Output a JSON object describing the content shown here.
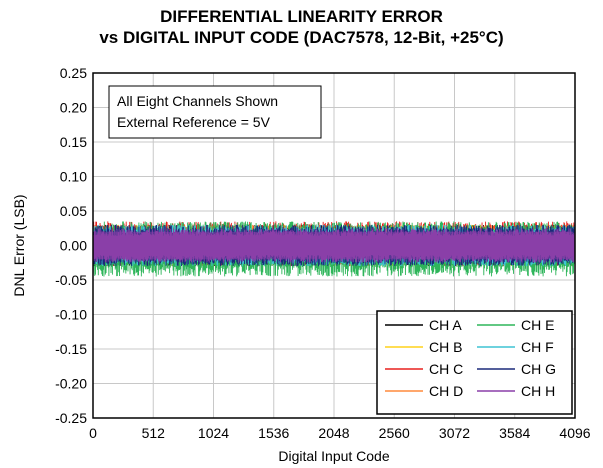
{
  "chart_data": {
    "type": "line",
    "title": "DIFFERENTIAL LINEARITY ERROR",
    "subtitle": "vs DIGITAL INPUT CODE (DAC7578, 12-Bit, +25°C)",
    "xlabel": "Digital Input Code",
    "ylabel": "DNL Error (LSB)",
    "xlim": [
      0,
      4096
    ],
    "ylim": [
      -0.25,
      0.25
    ],
    "x_ticks": [
      "0",
      "512",
      "1024",
      "1536",
      "2048",
      "2560",
      "3072",
      "3584",
      "4096"
    ],
    "y_ticks": [
      "0.25",
      "0.20",
      "0.15",
      "0.10",
      "0.05",
      "0.00",
      "-0.05",
      "-0.10",
      "-0.15",
      "-0.20",
      "-0.25"
    ],
    "grid": true,
    "legend_position": "bottom-right",
    "annotations": [
      "All Eight Channels Shown",
      "External Reference = 5V"
    ],
    "series": [
      {
        "name": "CH A",
        "color": "#000000",
        "range": [
          -0.03,
          0.03
        ]
      },
      {
        "name": "CH B",
        "color": "#ffd21a",
        "range": [
          -0.03,
          0.03
        ]
      },
      {
        "name": "CH C",
        "color": "#e8201e",
        "range": [
          -0.03,
          0.035
        ]
      },
      {
        "name": "CH D",
        "color": "#ff8a3c",
        "range": [
          -0.03,
          0.03
        ]
      },
      {
        "name": "CH E",
        "color": "#2eb55a",
        "range": [
          -0.045,
          0.035
        ]
      },
      {
        "name": "CH F",
        "color": "#3fc4d4",
        "range": [
          -0.03,
          0.03
        ]
      },
      {
        "name": "CH G",
        "color": "#1c2a7a",
        "range": [
          -0.03,
          0.03
        ]
      },
      {
        "name": "CH H",
        "color": "#8a3fa8",
        "range": [
          -0.025,
          0.025
        ]
      }
    ]
  }
}
